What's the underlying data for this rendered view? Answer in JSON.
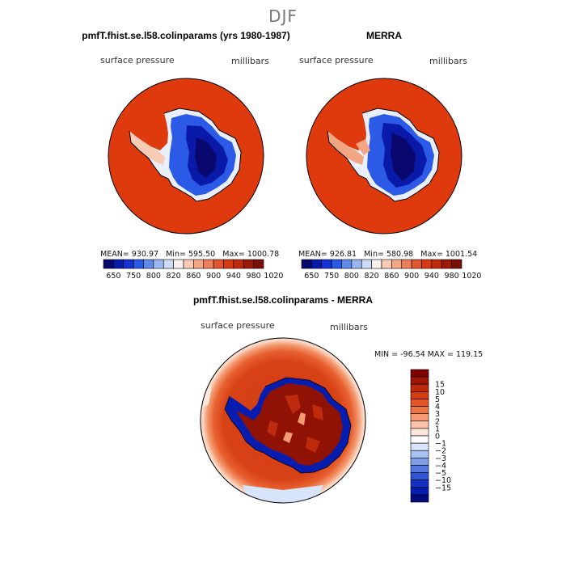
{
  "season": "DJF",
  "panels": [
    {
      "title": "pmfT.fhist.se.l58.colinparams (yrs 1980-1987)",
      "field": "surface pressure",
      "units": "millibars",
      "stats": {
        "mean": "930.97",
        "min": "595.50",
        "max": "1000.78"
      }
    },
    {
      "title": "MERRA",
      "field": "surface pressure",
      "units": "millibars",
      "stats": {
        "mean": "926.81",
        "min": "580.98",
        "max": "1001.54"
      }
    }
  ],
  "top_colorbar": {
    "tick_labels": [
      "650",
      "750",
      "800",
      "820",
      "860",
      "900",
      "940",
      "980",
      "1020"
    ],
    "colors": [
      "#08086e",
      "#0a1aa8",
      "#1432d6",
      "#2a5ae6",
      "#5f8ae8",
      "#9ab6ef",
      "#ccdaf5",
      "#f7f0ec",
      "#f8cbb4",
      "#f2a684",
      "#ec7f59",
      "#e1552f",
      "#d73a12",
      "#c02a0c",
      "#9c1a08",
      "#7a0f05"
    ]
  },
  "diff_panel": {
    "title": "pmfT.fhist.se.l58.colinparams - MERRA",
    "field": "surface pressure",
    "units": "millibars",
    "min_label": "MIN = ",
    "min_value": "-96.54",
    "max_label": "MAX = ",
    "max_value": "119.15"
  },
  "diff_colorbar": {
    "tick_labels": [
      "15",
      "10",
      "5",
      "4",
      "3",
      "2",
      "1",
      "0",
      "−1",
      "−2",
      "−3",
      "−4",
      "−5",
      "−10",
      "−15"
    ],
    "colors": [
      "#800000",
      "#a01506",
      "#bd2a0c",
      "#d43c12",
      "#e35526",
      "#ef7444",
      "#f59a72",
      "#fac3aa",
      "#fde6da",
      "#ffffff",
      "#d7e4fa",
      "#a9c3f3",
      "#7d9ee8",
      "#5677e0",
      "#2f54d4",
      "#1430c4",
      "#071db0",
      "#000a78"
    ]
  },
  "chart_data": [
    {
      "type": "heatmap",
      "title": "pmfT.fhist.se.l58.colinparams (yrs 1980-1987)",
      "projection": "south-polar-stereographic",
      "variable": "surface pressure",
      "units": "millibars",
      "mean": 930.97,
      "min": 595.5,
      "max": 1000.78,
      "contour_levels": [
        650,
        750,
        800,
        820,
        860,
        900,
        940,
        980,
        1020
      ]
    },
    {
      "type": "heatmap",
      "title": "MERRA",
      "projection": "south-polar-stereographic",
      "variable": "surface pressure",
      "units": "millibars",
      "mean": 926.81,
      "min": 580.98,
      "max": 1001.54,
      "contour_levels": [
        650,
        750,
        800,
        820,
        860,
        900,
        940,
        980,
        1020
      ]
    },
    {
      "type": "heatmap",
      "title": "pmfT.fhist.se.l58.colinparams - MERRA",
      "projection": "south-polar-stereographic",
      "variable": "surface pressure",
      "units": "millibars",
      "min": -96.54,
      "max": 119.15,
      "contour_levels": [
        -15,
        -10,
        -5,
        -4,
        -3,
        -2,
        -1,
        0,
        1,
        2,
        3,
        4,
        5,
        10,
        15
      ]
    }
  ]
}
